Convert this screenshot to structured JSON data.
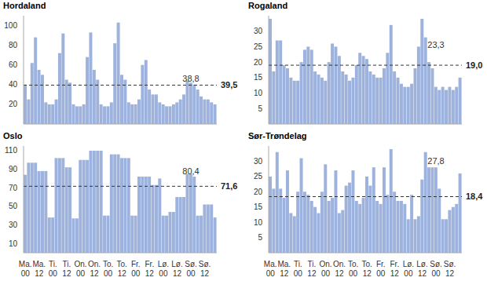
{
  "chart_data": [
    {
      "type": "bar",
      "title": "Hordaland",
      "categories": [
        "Ma. 00",
        null,
        null,
        null,
        "Ma. 12",
        null,
        null,
        null,
        "Ti. 00",
        null,
        null,
        null,
        "Ti. 12",
        null,
        null,
        null,
        "On. 00",
        null,
        null,
        null,
        "On. 12",
        null,
        null,
        null,
        "To. 00",
        null,
        null,
        null,
        "To. 12",
        null,
        null,
        null,
        "Fr. 00",
        null,
        null,
        null,
        "Fr. 12",
        null,
        null,
        null,
        "Lø. 00",
        null,
        null,
        null,
        "Lø. 12",
        null,
        null,
        null,
        "Sø. 00",
        null,
        null,
        null,
        "Sø. 12",
        null,
        null,
        null
      ],
      "values": [
        40,
        25,
        62,
        88,
        55,
        50,
        22,
        20,
        20,
        25,
        72,
        92,
        45,
        42,
        20,
        18,
        18,
        20,
        68,
        93,
        55,
        45,
        20,
        18,
        18,
        22,
        82,
        103,
        50,
        45,
        22,
        20,
        20,
        25,
        60,
        65,
        35,
        30,
        30,
        22,
        20,
        18,
        18,
        20,
        22,
        25,
        30,
        44,
        42,
        40,
        35,
        28,
        25,
        25,
        22,
        20
      ],
      "color": "#9db3dd",
      "ylim": [
        0,
        110
      ],
      "yticks": [
        10,
        20,
        30,
        40,
        50,
        60,
        70,
        80,
        90,
        100
      ],
      "grid": false,
      "tick_labels": "y",
      "reference_line": {
        "value": 39.5,
        "label": "39,5",
        "line_style": "dashed"
      },
      "annotation": {
        "value": 38.8,
        "label": "38,8"
      }
    },
    {
      "type": "bar",
      "title": "Rogaland",
      "categories": [
        "Ma. 00",
        null,
        null,
        null,
        "Ma. 12",
        null,
        null,
        null,
        "Ti. 00",
        null,
        null,
        null,
        "Ti. 12",
        null,
        null,
        null,
        "On. 00",
        null,
        null,
        null,
        "On. 12",
        null,
        null,
        null,
        "To. 00",
        null,
        null,
        null,
        "To. 12",
        null,
        null,
        null,
        "Fr. 00",
        null,
        null,
        null,
        "Fr. 12",
        null,
        null,
        null,
        "Lø. 00",
        null,
        null,
        null,
        "Lø. 12",
        null,
        null,
        null,
        "Sø. 00",
        null,
        null,
        null,
        "Sø. 12",
        null,
        null,
        null
      ],
      "values": [
        34,
        17,
        27,
        27,
        19,
        18,
        15,
        14,
        14,
        20,
        24,
        25,
        24,
        17,
        16,
        15,
        14,
        20,
        26,
        25,
        22,
        17,
        16,
        14,
        15,
        19,
        23,
        22,
        21,
        17,
        16,
        15,
        15,
        18,
        23,
        32,
        17,
        15,
        13,
        12,
        12,
        13,
        18,
        25,
        34,
        28,
        20,
        18,
        12,
        11,
        12,
        11,
        12,
        11,
        12,
        15
      ],
      "color": "#9db3dd",
      "ylim": [
        0,
        35
      ],
      "yticks": [
        5,
        10,
        15,
        20,
        25,
        30
      ],
      "grid": false,
      "tick_labels": "y",
      "reference_line": {
        "value": 19.0,
        "label": "19,0",
        "line_style": "dashed"
      },
      "annotation": {
        "value": 23.3,
        "label": "23,3"
      }
    },
    {
      "type": "bar",
      "title": "Oslo",
      "categories": [
        "Ma. 00",
        null,
        null,
        null,
        "Ma. 12",
        null,
        null,
        null,
        "Ti. 00",
        null,
        null,
        null,
        "Ti. 12",
        null,
        null,
        null,
        "On. 00",
        null,
        null,
        null,
        "On. 12",
        null,
        null,
        null,
        "To. 00",
        null,
        null,
        null,
        "To. 12",
        null,
        null,
        null,
        "Fr. 00",
        null,
        null,
        null,
        "Fr. 12",
        null,
        null,
        null,
        "Lø. 00",
        null,
        null,
        null,
        "Lø. 12",
        null,
        null,
        null,
        "Sø. 00",
        null,
        null,
        null,
        "Sø. 12",
        null,
        null,
        null
      ],
      "values": [
        84,
        97,
        97,
        97,
        88,
        88,
        88,
        38,
        38,
        102,
        102,
        102,
        92,
        92,
        37,
        37,
        100,
        100,
        100,
        110,
        110,
        110,
        110,
        40,
        40,
        106,
        106,
        106,
        102,
        102,
        102,
        40,
        40,
        82,
        82,
        82,
        82,
        73,
        73,
        80,
        40,
        40,
        44,
        44,
        60,
        60,
        60,
        85,
        85,
        82,
        40,
        40,
        52,
        52,
        52,
        38
      ],
      "color": "#9db3dd",
      "ylim": [
        0,
        115
      ],
      "yticks": [
        10,
        20,
        30,
        40,
        50,
        60,
        70,
        80,
        90,
        100,
        110
      ],
      "grid": false,
      "reference_line": {
        "value": 71.6,
        "label": "71,6",
        "line_style": "dashed"
      },
      "annotation": {
        "value": 80.4,
        "label": "80,4"
      }
    },
    {
      "type": "bar",
      "title": "Sør-Trøndelag",
      "categories": [
        "Ma. 00",
        null,
        null,
        null,
        "Ma. 12",
        null,
        null,
        null,
        "Ti. 00",
        null,
        null,
        null,
        "Ti. 12",
        null,
        null,
        null,
        "On. 00",
        null,
        null,
        null,
        "On. 12",
        null,
        null,
        null,
        "To. 00",
        null,
        null,
        null,
        "To. 12",
        null,
        null,
        null,
        "Fr. 00",
        null,
        null,
        null,
        "Fr. 12",
        null,
        null,
        null,
        "Lø. 00",
        null,
        null,
        null,
        "Lø. 12",
        null,
        null,
        null,
        "Sø. 00",
        null,
        null,
        null,
        "Sø. 12",
        null,
        null,
        null
      ],
      "values": [
        25,
        21,
        33,
        21,
        18,
        27,
        13,
        12,
        20,
        31,
        20,
        19,
        17,
        15,
        13,
        20,
        29,
        17,
        18,
        27,
        13,
        14,
        22,
        23,
        27,
        17,
        16,
        18,
        25,
        22,
        28,
        17,
        16,
        28,
        19,
        34,
        20,
        17,
        17,
        16,
        11,
        19,
        11,
        12,
        24,
        33,
        28,
        28,
        28,
        21,
        11,
        11,
        14,
        15,
        16,
        26
      ],
      "color": "#9db3dd",
      "ylim": [
        0,
        35
      ],
      "yticks": [
        5,
        10,
        15,
        20,
        25,
        30
      ],
      "grid": false,
      "reference_line": {
        "value": 18.4,
        "label": "18,4",
        "line_style": "dashed"
      },
      "annotation": {
        "value": 27.8,
        "label": "27,8"
      }
    }
  ]
}
